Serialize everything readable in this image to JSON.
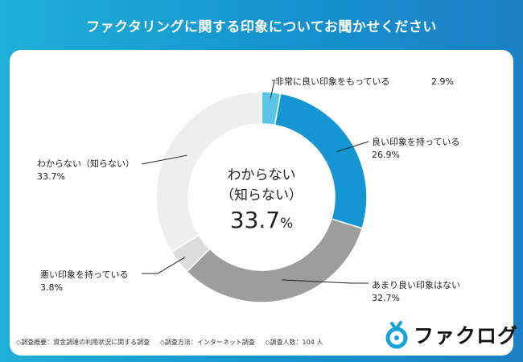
{
  "header": {
    "title": "ファクタリングに関する印象についてお聞かせください"
  },
  "chart_data": {
    "type": "pie",
    "donut": true,
    "start": "top",
    "direction": "clockwise",
    "slices": [
      {
        "label": "非常に良い印象をもっている",
        "value": 2.9,
        "value_label": "2.9%",
        "color": "#5bc5e8"
      },
      {
        "label": "良い印象を持っている",
        "value": 26.9,
        "value_label": "26.9%",
        "color": "#1596d3"
      },
      {
        "label": "あまり良い印象はない",
        "value": 32.7,
        "value_label": "32.7%",
        "color": "#9d9d9d"
      },
      {
        "label": "悪い印象を持っている",
        "value": 3.8,
        "value_label": "3.8%",
        "color": "#dcdcdc"
      },
      {
        "label": "わからない（知らない）",
        "value": 33.7,
        "value_label": "33.7%",
        "color": "#eeeeee"
      }
    ],
    "center": {
      "line1": "わからない",
      "line2": "（知らない）",
      "value": "33.7",
      "unit": "%"
    }
  },
  "footnote": {
    "overview": "◇調査概要：資金調達の利用状況に関する調査",
    "method": "◇調査方法：インターネット調査",
    "respondents": "◇調査人数：104 人"
  },
  "brand": {
    "name": "ファクログ",
    "logo_color": "#1aa3d9"
  }
}
